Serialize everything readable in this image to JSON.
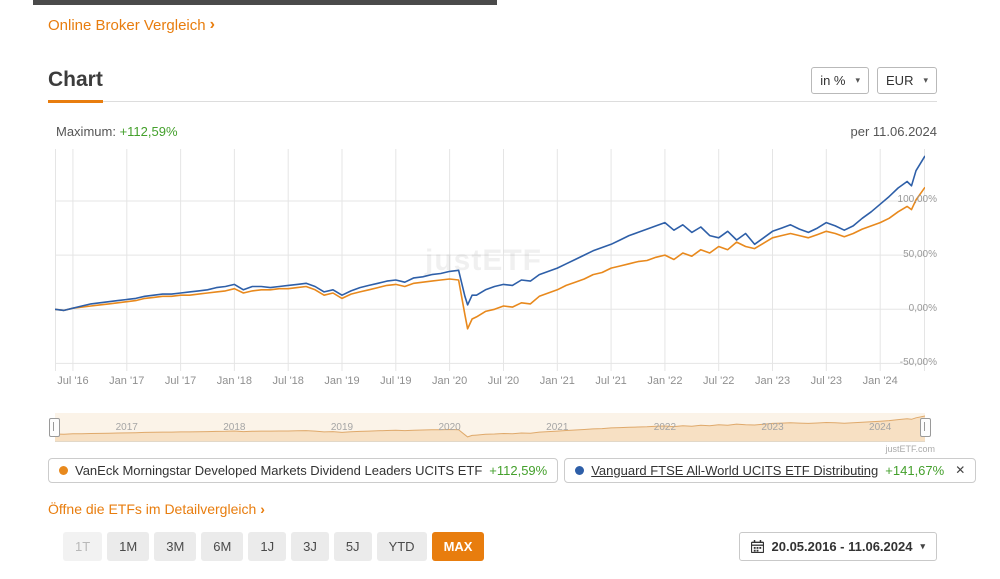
{
  "page": {
    "broker_link": "Online Broker Vergleich",
    "chevron": "›",
    "section_title": "Chart",
    "unit_select": "in %",
    "currency_select": "EUR",
    "max_label": "Maximum:",
    "max_value": "+112,59%",
    "as_of": "per 11.06.2024",
    "watermark": "justETF",
    "source": "justETF.com",
    "detail_link": "Öffne die ETFs im Detailvergleich",
    "date_range": "20.05.2016 - 11.06.2024",
    "caret": "▾",
    "close": "✕"
  },
  "colors": {
    "accent": "#E87D0E",
    "green": "#44A02C",
    "grid": "#E5E5E5",
    "axis_text": "#8F8F8F"
  },
  "legend": [
    {
      "name": "VanEck Morningstar Developed Markets Dividend Leaders UCITS ETF",
      "value": "+112,59%",
      "color": "#E8891D",
      "is_link": false
    },
    {
      "name": "Vanguard FTSE All-World UCITS ETF Distributing",
      "value": "+141,67%",
      "color": "#2E5FA8",
      "is_link": true
    }
  ],
  "range_buttons": [
    {
      "label": "1T",
      "state": "disabled"
    },
    {
      "label": "1M",
      "state": "normal"
    },
    {
      "label": "3M",
      "state": "normal"
    },
    {
      "label": "6M",
      "state": "normal"
    },
    {
      "label": "1J",
      "state": "normal"
    },
    {
      "label": "3J",
      "state": "normal"
    },
    {
      "label": "5J",
      "state": "normal"
    },
    {
      "label": "YTD",
      "state": "normal"
    },
    {
      "label": "MAX",
      "state": "active"
    }
  ],
  "chart_data": {
    "type": "line",
    "title": "Chart",
    "unit": "percent return",
    "currency": "EUR",
    "as_of": "11.06.2024",
    "period": "20.05.2016 - 11.06.2024",
    "grid": true,
    "legend_position": "bottom",
    "x_ticks": [
      "Jul '16",
      "Jan '17",
      "Jul '17",
      "Jan '18",
      "Jul '18",
      "Jan '19",
      "Jul '19",
      "Jan '20",
      "Jul '20",
      "Jan '21",
      "Jul '21",
      "Jan '22",
      "Jul '22",
      "Jan '23",
      "Jul '23",
      "Jan '24"
    ],
    "x_tick_months": [
      2,
      8,
      14,
      20,
      26,
      32,
      38,
      44,
      50,
      56,
      62,
      68,
      74,
      80,
      86,
      92
    ],
    "x_max_month": 97,
    "y_ticks": [
      "100,00%",
      "50,00%",
      "0,00%",
      "-50,00%"
    ],
    "y_tick_values": [
      100,
      50,
      0,
      -50
    ],
    "ylim": [
      -57,
      148
    ],
    "nav_ylim": [
      -25,
      125
    ],
    "nav_years": [
      "2017",
      "2018",
      "2019",
      "2020",
      "2021",
      "2022",
      "2023",
      "2024"
    ],
    "nav_year_months": [
      8,
      20,
      32,
      44,
      56,
      68,
      80,
      92
    ],
    "series": [
      {
        "name": "VanEck Morningstar Developed Markets Dividend Leaders UCITS ETF",
        "color": "#E8891D",
        "final": "+112,59%",
        "points": [
          [
            0,
            0
          ],
          [
            1,
            -1
          ],
          [
            2,
            1
          ],
          [
            3,
            2
          ],
          [
            4,
            3
          ],
          [
            5,
            4
          ],
          [
            6,
            5
          ],
          [
            7,
            6
          ],
          [
            8,
            7
          ],
          [
            9,
            8
          ],
          [
            10,
            10
          ],
          [
            11,
            11
          ],
          [
            12,
            12
          ],
          [
            13,
            12
          ],
          [
            14,
            13
          ],
          [
            15,
            13
          ],
          [
            16,
            14
          ],
          [
            17,
            15
          ],
          [
            18,
            16
          ],
          [
            19,
            17
          ],
          [
            20,
            19
          ],
          [
            21,
            15
          ],
          [
            22,
            17
          ],
          [
            23,
            18
          ],
          [
            24,
            18
          ],
          [
            25,
            19
          ],
          [
            26,
            19
          ],
          [
            27,
            20
          ],
          [
            28,
            21
          ],
          [
            29,
            18
          ],
          [
            30,
            13
          ],
          [
            31,
            15
          ],
          [
            32,
            10
          ],
          [
            33,
            14
          ],
          [
            34,
            16
          ],
          [
            35,
            18
          ],
          [
            36,
            20
          ],
          [
            37,
            22
          ],
          [
            38,
            23
          ],
          [
            39,
            21
          ],
          [
            40,
            24
          ],
          [
            41,
            25
          ],
          [
            42,
            26
          ],
          [
            43,
            27
          ],
          [
            44,
            28
          ],
          [
            45,
            27
          ],
          [
            45.7,
            -5
          ],
          [
            46,
            -18
          ],
          [
            46.5,
            -9
          ],
          [
            47,
            -7
          ],
          [
            48,
            -2
          ],
          [
            49,
            0
          ],
          [
            50,
            3
          ],
          [
            51,
            2
          ],
          [
            52,
            6
          ],
          [
            53,
            5
          ],
          [
            54,
            12
          ],
          [
            55,
            15
          ],
          [
            56,
            18
          ],
          [
            57,
            22
          ],
          [
            58,
            25
          ],
          [
            59,
            28
          ],
          [
            60,
            32
          ],
          [
            61,
            34
          ],
          [
            62,
            38
          ],
          [
            63,
            40
          ],
          [
            64,
            42
          ],
          [
            65,
            44
          ],
          [
            66,
            45
          ],
          [
            67,
            48
          ],
          [
            68,
            50
          ],
          [
            69,
            46
          ],
          [
            70,
            52
          ],
          [
            71,
            49
          ],
          [
            72,
            55
          ],
          [
            73,
            52
          ],
          [
            74,
            58
          ],
          [
            75,
            55
          ],
          [
            76,
            62
          ],
          [
            77,
            58
          ],
          [
            78,
            56
          ],
          [
            79,
            61
          ],
          [
            80,
            66
          ],
          [
            81,
            68
          ],
          [
            82,
            70
          ],
          [
            83,
            68
          ],
          [
            84,
            66
          ],
          [
            85,
            69
          ],
          [
            86,
            72
          ],
          [
            87,
            70
          ],
          [
            88,
            67
          ],
          [
            89,
            70
          ],
          [
            90,
            74
          ],
          [
            91,
            77
          ],
          [
            92,
            80
          ],
          [
            93,
            84
          ],
          [
            94,
            90
          ],
          [
            95,
            95
          ],
          [
            95.5,
            92
          ],
          [
            96,
            101
          ],
          [
            97,
            112.59
          ]
        ]
      },
      {
        "name": "Vanguard FTSE All-World UCITS ETF Distributing",
        "color": "#2E5FA8",
        "final": "+141,67%",
        "points": [
          [
            0,
            0
          ],
          [
            1,
            -1
          ],
          [
            2,
            1
          ],
          [
            3,
            3
          ],
          [
            4,
            5
          ],
          [
            5,
            6
          ],
          [
            6,
            7
          ],
          [
            7,
            8
          ],
          [
            8,
            9
          ],
          [
            9,
            10
          ],
          [
            10,
            12
          ],
          [
            11,
            13
          ],
          [
            12,
            14
          ],
          [
            13,
            14
          ],
          [
            14,
            15
          ],
          [
            15,
            16
          ],
          [
            16,
            17
          ],
          [
            17,
            18
          ],
          [
            18,
            20
          ],
          [
            19,
            21
          ],
          [
            20,
            23
          ],
          [
            21,
            18
          ],
          [
            22,
            21
          ],
          [
            23,
            21
          ],
          [
            24,
            20
          ],
          [
            25,
            21
          ],
          [
            26,
            22
          ],
          [
            27,
            23
          ],
          [
            28,
            24
          ],
          [
            29,
            21
          ],
          [
            30,
            16
          ],
          [
            31,
            18
          ],
          [
            32,
            13
          ],
          [
            33,
            17
          ],
          [
            34,
            20
          ],
          [
            35,
            22
          ],
          [
            36,
            24
          ],
          [
            37,
            26
          ],
          [
            38,
            27
          ],
          [
            39,
            25
          ],
          [
            40,
            29
          ],
          [
            41,
            30
          ],
          [
            42,
            32
          ],
          [
            43,
            33
          ],
          [
            44,
            35
          ],
          [
            45,
            36
          ],
          [
            45.7,
            12
          ],
          [
            46,
            4
          ],
          [
            46.5,
            13
          ],
          [
            47,
            13
          ],
          [
            48,
            18
          ],
          [
            49,
            21
          ],
          [
            50,
            23
          ],
          [
            51,
            22
          ],
          [
            52,
            27
          ],
          [
            53,
            26
          ],
          [
            54,
            32
          ],
          [
            55,
            35
          ],
          [
            56,
            38
          ],
          [
            57,
            42
          ],
          [
            58,
            46
          ],
          [
            59,
            50
          ],
          [
            60,
            54
          ],
          [
            61,
            57
          ],
          [
            62,
            60
          ],
          [
            63,
            64
          ],
          [
            64,
            68
          ],
          [
            65,
            71
          ],
          [
            66,
            74
          ],
          [
            67,
            77
          ],
          [
            68,
            80
          ],
          [
            69,
            73
          ],
          [
            70,
            78
          ],
          [
            71,
            71
          ],
          [
            72,
            76
          ],
          [
            73,
            68
          ],
          [
            74,
            66
          ],
          [
            75,
            72
          ],
          [
            76,
            64
          ],
          [
            77,
            70
          ],
          [
            78,
            60
          ],
          [
            79,
            66
          ],
          [
            80,
            72
          ],
          [
            81,
            75
          ],
          [
            82,
            78
          ],
          [
            83,
            74
          ],
          [
            84,
            71
          ],
          [
            85,
            75
          ],
          [
            86,
            80
          ],
          [
            87,
            77
          ],
          [
            88,
            73
          ],
          [
            89,
            77
          ],
          [
            90,
            84
          ],
          [
            91,
            90
          ],
          [
            92,
            97
          ],
          [
            93,
            104
          ],
          [
            94,
            112
          ],
          [
            95,
            118
          ],
          [
            95.5,
            114
          ],
          [
            96,
            128
          ],
          [
            97,
            141.67
          ]
        ]
      }
    ]
  }
}
